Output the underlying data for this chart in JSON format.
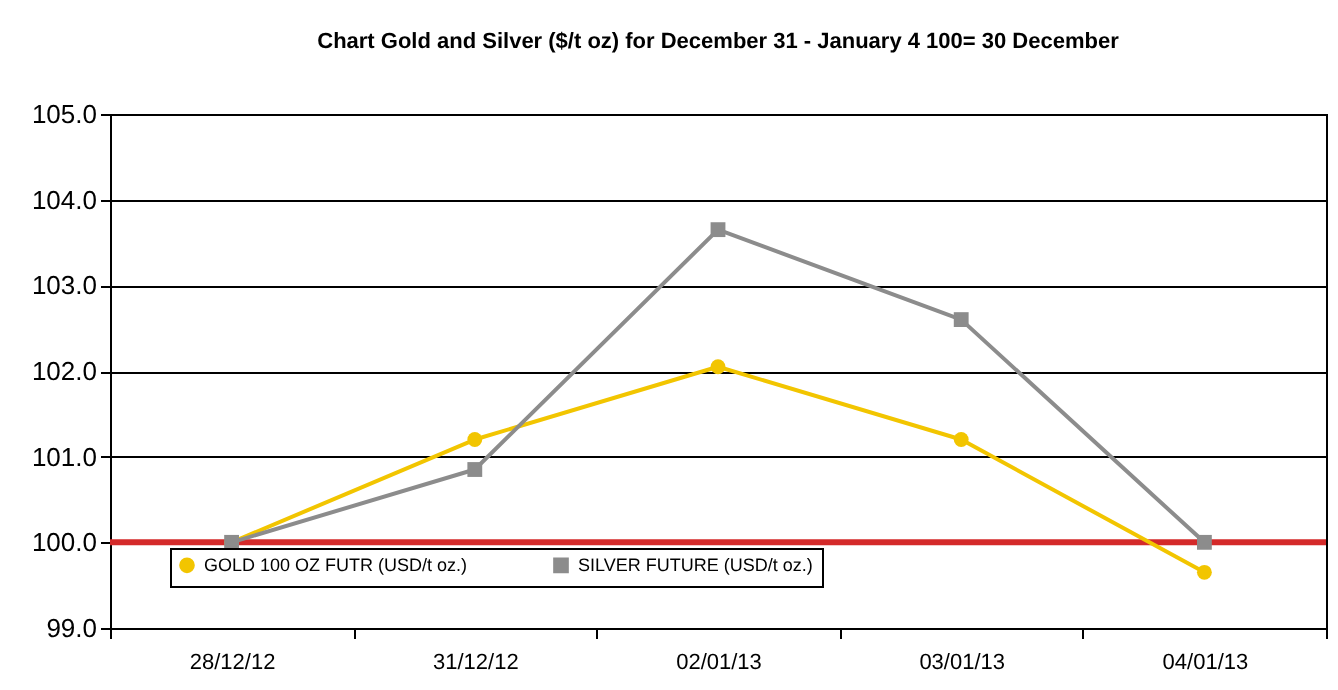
{
  "chart_data": {
    "type": "line",
    "title": "Chart  Gold and Silver ($/t oz) for December 31 - January 4   100= 30 December",
    "categories": [
      "28/12/12",
      "31/12/12",
      "02/01/13",
      "03/01/13",
      "04/01/13"
    ],
    "series": [
      {
        "name": "GOLD 100 OZ FUTR (USD/t oz.)",
        "color": "#f2c500",
        "marker": "circle",
        "values": [
          100.0,
          101.2,
          102.05,
          101.2,
          99.65
        ]
      },
      {
        "name": "SILVER FUTURE (USD/t oz.)",
        "color": "#8c8c8c",
        "marker": "square",
        "values": [
          100.0,
          100.85,
          103.65,
          102.6,
          100.0
        ]
      }
    ],
    "ylim": [
      99,
      105
    ],
    "yticks": [
      {
        "value": 99,
        "label": "99.0"
      },
      {
        "value": 100,
        "label": "100.0"
      },
      {
        "value": 101,
        "label": "101.0"
      },
      {
        "value": 102,
        "label": "102.0"
      },
      {
        "value": 103,
        "label": "103.0"
      },
      {
        "value": 104,
        "label": "104.0"
      },
      {
        "value": 105,
        "label": "105.0"
      }
    ],
    "grid": "y",
    "legend": "bottom left",
    "ref_lines": [
      {
        "axis": "y",
        "value": 100,
        "color": "#d42a2a"
      }
    ]
  }
}
